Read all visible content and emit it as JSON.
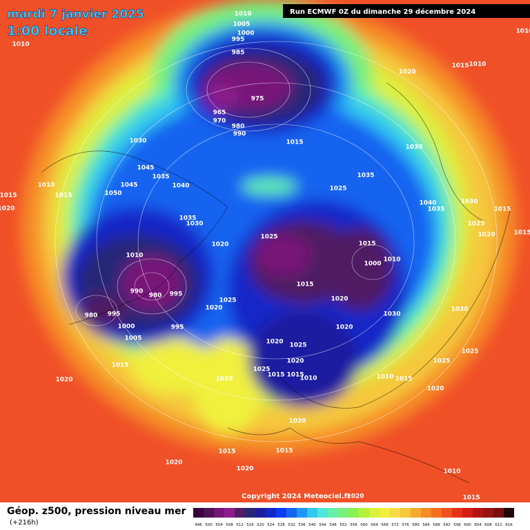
{
  "header": {
    "date": "mardi 7 janvier 2025",
    "time": "1:00 locale",
    "run": "Run ECMWF 0Z du dimanche 29 décembre 2024"
  },
  "copyright": "Copyright 2024 Meteociel.fr",
  "footer": {
    "parameter": "Géop. z500, pression niveau mer",
    "lead": "(+216h)"
  },
  "legend": {
    "ticks": [
      496,
      500,
      504,
      508,
      512,
      516,
      520,
      524,
      528,
      532,
      536,
      540,
      544,
      548,
      552,
      556,
      560,
      564,
      568,
      572,
      576,
      580,
      584,
      588,
      592,
      596,
      600,
      604,
      608,
      612,
      616
    ],
    "colors": [
      "#3a0040",
      "#50105a",
      "#781478",
      "#8c1e8c",
      "#501e64",
      "#282878",
      "#1e1ea0",
      "#1428c8",
      "#0a3cf0",
      "#1464f0",
      "#1e96f5",
      "#32c8f0",
      "#50e6dc",
      "#64f0aa",
      "#78f07d",
      "#8cf050",
      "#b4f03c",
      "#dcf03c",
      "#f0f03c",
      "#f5dc46",
      "#f5c83c",
      "#f5aa32",
      "#f58c28",
      "#f56e1e",
      "#f0501e",
      "#e63214",
      "#d21e14",
      "#b41414",
      "#961414",
      "#781010",
      "#200808"
    ]
  },
  "isobar_labels": [
    "1010",
    "1010",
    "1005",
    "1000",
    "995",
    "985",
    "975",
    "965",
    "970",
    "980",
    "990",
    "1015",
    "1020",
    "1015",
    "1010",
    "1030",
    "1030",
    "1045",
    "1035",
    "1045",
    "1040",
    "1035",
    "1025",
    "1010",
    "1015",
    "1015",
    "1020",
    "1050",
    "1040",
    "1035",
    "1030",
    "1015",
    "1025",
    "1020",
    "1015",
    "1035",
    "1030",
    "1020",
    "1025",
    "1015",
    "1010",
    "1000",
    "1010",
    "990",
    "980",
    "995",
    "1015",
    "1020",
    "1025",
    "1020",
    "1030",
    "980",
    "995",
    "1000",
    "1005",
    "995",
    "1020",
    "1020",
    "1025",
    "1020",
    "1025",
    "1015",
    "1015",
    "1010",
    "1015",
    "1020",
    "1030",
    "1010",
    "1015",
    "1020",
    "1025",
    "1025",
    "1030",
    "1020",
    "1020",
    "1015",
    "1015",
    "1020",
    "1010",
    "1015",
    "1020",
    "1010"
  ]
}
